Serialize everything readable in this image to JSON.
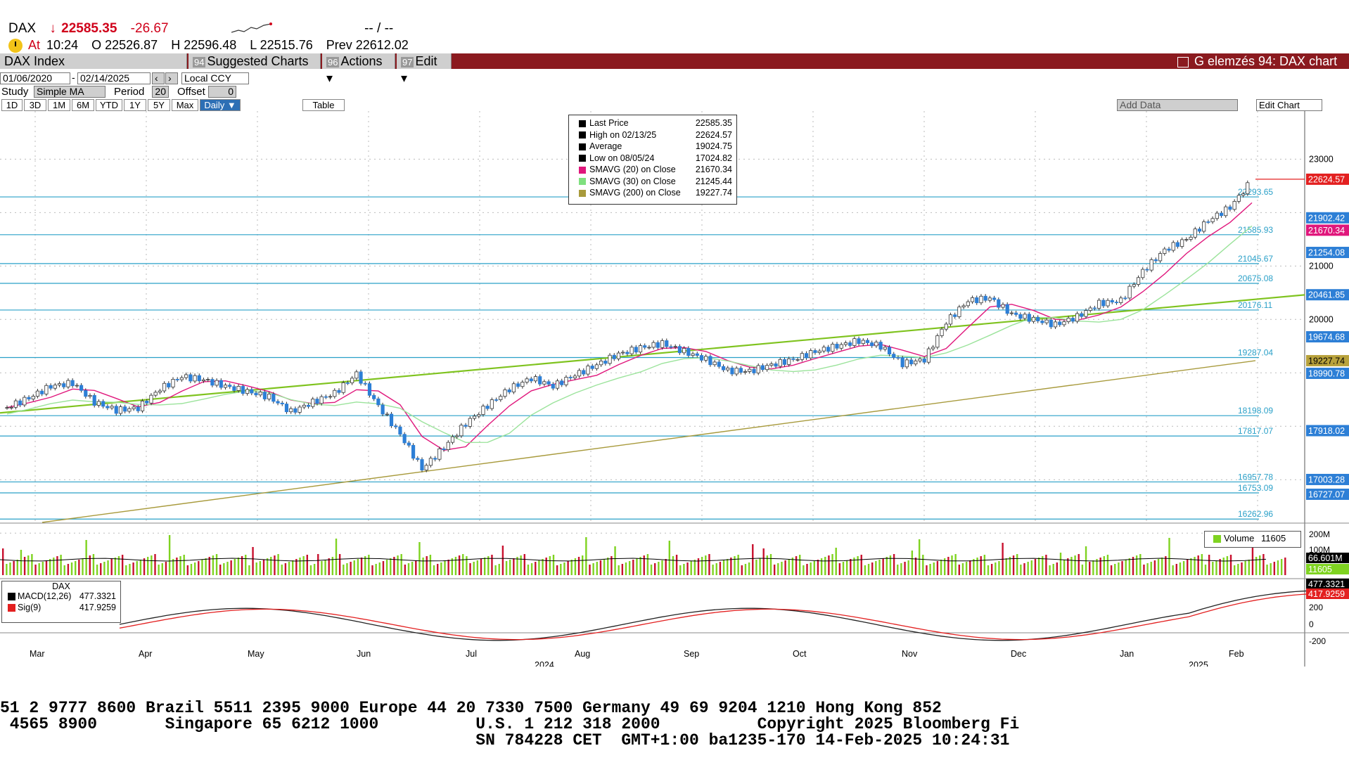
{
  "header": {
    "ticker": "DAX",
    "arrow": "↓",
    "last": "22585.35",
    "change": "-26.67",
    "dashes": "--  /  --",
    "at_label": "At",
    "time": "10:24",
    "open": "O 22526.87",
    "high": "H 22596.48",
    "low": "L 22515.76",
    "prev": "Prev 22612.02"
  },
  "toolbar": {
    "security": "DAX Index",
    "suggested_num": "94",
    "suggested": "Suggested Charts ▾",
    "actions_num": "96",
    "actions": "Actions ▾",
    "edit_num": "97",
    "edit": "Edit ▾",
    "title": "G elemzés 94: DAX chart"
  },
  "controls": {
    "start_date": "01/06/2020",
    "end_date": "02/14/2025",
    "currency": "Local CCY",
    "study_label": "Study",
    "study": "Simple MA",
    "period_label": "Period",
    "period": "20",
    "offset_label": "Offset",
    "offset": "0",
    "add_data": "Add Data",
    "edit_chart": "Edit Chart",
    "table": "Table",
    "frequency": "Daily ▼",
    "timeframes": [
      "1D",
      "3D",
      "1M",
      "6M",
      "YTD",
      "1Y",
      "5Y",
      "Max"
    ]
  },
  "legend": [
    {
      "label": "Last Price",
      "value": "22585.35",
      "color": "#000000"
    },
    {
      "label": "High on 02/13/25",
      "value": "22624.57",
      "color": "#000000"
    },
    {
      "label": "Average",
      "value": "19024.75",
      "color": "#000000"
    },
    {
      "label": "Low on 08/05/24",
      "value": "17024.82",
      "color": "#000000"
    },
    {
      "label": "SMAVG (20)  on Close",
      "value": "21670.34",
      "color": "#e0177c"
    },
    {
      "label": "SMAVG (30)  on Close",
      "value": "21245.44",
      "color": "#7fe07f"
    },
    {
      "label": "SMAVG (200)  on Close",
      "value": "19227.74",
      "color": "#a89a3c"
    }
  ],
  "volume_legend": {
    "label": "Volume",
    "value": "11605"
  },
  "macd_legend": {
    "title": "DAX",
    "macd_label": "MACD(12,26)",
    "macd_value": "477.3321",
    "sig_label": "Sig(9)",
    "sig_value": "417.9259"
  },
  "colors": {
    "up": "#7fd321",
    "down": "#c8102e",
    "candle": "#2d7fd6",
    "trend": "#7fc31f",
    "level": "#2aa0c8",
    "sma20": "#e0177c",
    "sma30": "#9be39b",
    "sma200": "#a89a3c",
    "brand": "#8b1a1f"
  },
  "chart_data": {
    "type": "candlestick",
    "x_label_months": [
      "Mar",
      "Apr",
      "May",
      "Jun",
      "Jul",
      "Aug",
      "Sep",
      "Oct",
      "Nov",
      "Dec",
      "Jan",
      "Feb"
    ],
    "year_labels": [
      "2024",
      "2025"
    ],
    "price_ticks": [
      20000,
      21000,
      23000
    ],
    "price_ylim": [
      16200,
      23900
    ],
    "close_path": [
      [
        0,
        18350
      ],
      [
        0.5,
        18530
      ],
      [
        1,
        18750
      ],
      [
        1.5,
        18810
      ],
      [
        2,
        18450
      ],
      [
        2.5,
        18300
      ],
      [
        3,
        18340
      ],
      [
        3.5,
        18700
      ],
      [
        4,
        18930
      ],
      [
        4.5,
        18870
      ],
      [
        5,
        18750
      ],
      [
        5.5,
        18650
      ],
      [
        6,
        18550
      ],
      [
        6.5,
        18270
      ],
      [
        7,
        18450
      ],
      [
        7.5,
        18620
      ],
      [
        8,
        18980
      ],
      [
        8.5,
        18380
      ],
      [
        9,
        17850
      ],
      [
        9.5,
        17200
      ],
      [
        10,
        17600
      ],
      [
        10.5,
        18050
      ],
      [
        11,
        18390
      ],
      [
        11.5,
        18700
      ],
      [
        12,
        18900
      ],
      [
        12.5,
        18750
      ],
      [
        13,
        18960
      ],
      [
        13.5,
        19150
      ],
      [
        14,
        19350
      ],
      [
        14.5,
        19470
      ],
      [
        15,
        19550
      ],
      [
        15.5,
        19400
      ],
      [
        16,
        19250
      ],
      [
        16.5,
        19040
      ],
      [
        17,
        19030
      ],
      [
        17.5,
        19150
      ],
      [
        18,
        19250
      ],
      [
        18.5,
        19400
      ],
      [
        19,
        19500
      ],
      [
        19.5,
        19600
      ],
      [
        20,
        19500
      ],
      [
        20.5,
        19170
      ],
      [
        21,
        19250
      ],
      [
        21.5,
        19950
      ],
      [
        22,
        20350
      ],
      [
        22.5,
        20400
      ],
      [
        23,
        20100
      ],
      [
        23.5,
        20000
      ],
      [
        24,
        19900
      ],
      [
        24.5,
        20050
      ],
      [
        25,
        20300
      ],
      [
        25.5,
        20350
      ],
      [
        26,
        20900
      ],
      [
        26.5,
        21300
      ],
      [
        27,
        21500
      ],
      [
        27.5,
        21850
      ],
      [
        28,
        22100
      ],
      [
        28.5,
        22600
      ]
    ],
    "levels": [
      {
        "label": "22293.65",
        "value": 22293.65
      },
      {
        "label": "21585.93",
        "value": 21585.93
      },
      {
        "label": "21045.67",
        "value": 21045.67
      },
      {
        "label": "20675.08",
        "value": 20675.08
      },
      {
        "label": "20176.11",
        "value": 20176.11
      },
      {
        "label": "19287.04",
        "value": 19287.04
      },
      {
        "label": "18198.09",
        "value": 18198.09
      },
      {
        "label": "17817.07",
        "value": 17817.07
      },
      {
        "label": "16957.78",
        "value": 16957.78
      },
      {
        "label": "16753.09",
        "value": 16753.09
      },
      {
        "label": "16262.96",
        "value": 16262.96
      }
    ],
    "right_tags": [
      {
        "label": "22624.57",
        "value": 22624.57,
        "color": "#e32020"
      },
      {
        "label": "21902.42",
        "value": 21902.42,
        "color": "#2d7fd6"
      },
      {
        "label": "21670.34",
        "value": 21670.34,
        "color": "#e0177c"
      },
      {
        "label": "21254.08",
        "value": 21254.08,
        "color": "#2d7fd6"
      },
      {
        "label": "20461.85",
        "value": 20461.85,
        "color": "#2d7fd6"
      },
      {
        "label": "19674.68",
        "value": 19674.68,
        "color": "#2d7fd6"
      },
      {
        "label": "19227.74",
        "value": 19227.74,
        "color": "#b8a23c"
      },
      {
        "label": "18990.78",
        "value": 18990.78,
        "color": "#2d7fd6"
      },
      {
        "label": "17918.02",
        "value": 17918.02,
        "color": "#2d7fd6"
      },
      {
        "label": "17003.28",
        "value": 17003.28,
        "color": "#2d7fd6"
      },
      {
        "label": "16727.07",
        "value": 16727.07,
        "color": "#2d7fd6"
      }
    ],
    "volume_ticks": [
      "200M",
      "100M"
    ],
    "volume_tags": [
      {
        "label": "66.601M",
        "color": "#000000"
      },
      {
        "label": "11605",
        "color": "#7fd321"
      }
    ],
    "macd_ticks": [
      200,
      0,
      -200
    ],
    "macd_tags": [
      {
        "label": "477.3321",
        "color": "#000000"
      },
      {
        "label": "417.9259",
        "color": "#e32020"
      }
    ]
  },
  "ticker_tape": {
    "line1": "51 2 9777 8600 Brazil 5511 2395 9000 Europe 44 20 7330 7500 Germany 49 69 9204 1210 Hong Kong 852",
    "line2": " 4565 8900       Singapore 65 6212 1000          U.S. 1 212 318 2000          Copyright 2025 Bloomberg Fi",
    "line3": "                                                 SN 784228 CET  GMT+1:00 ba1235-170 14-Feb-2025 10:24:31"
  }
}
